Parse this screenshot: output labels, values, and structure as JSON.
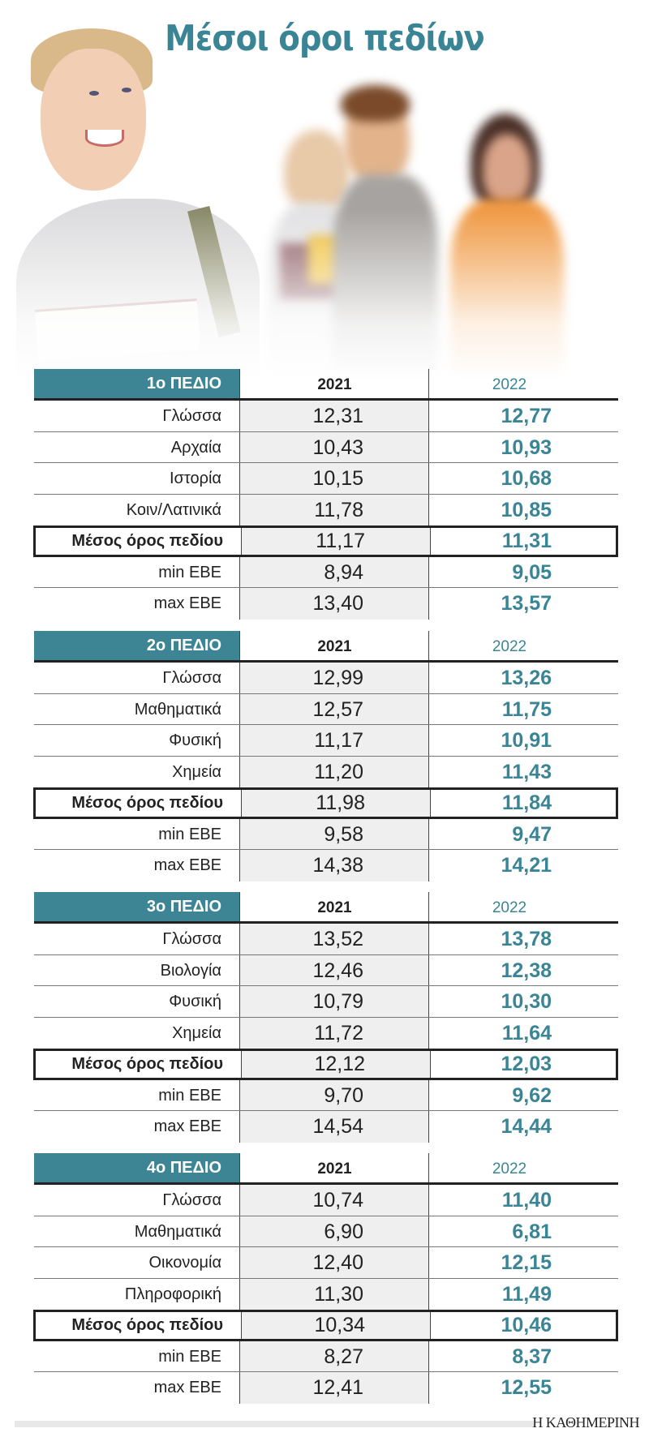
{
  "title": "Μέσοι όροι πεδίων",
  "columns": {
    "year1": "2021",
    "year2": "2022"
  },
  "blocks": [
    {
      "field": "1ο ΠΕΔΙΟ",
      "rows": [
        {
          "label": "Γλώσσα",
          "v2021": "12,31",
          "v2022": "12,77"
        },
        {
          "label": "Αρχαία",
          "v2021": "10,43",
          "v2022": "10,93"
        },
        {
          "label": "Ιστορία",
          "v2021": "10,15",
          "v2022": "10,68"
        },
        {
          "label": "Κοιν/Λατινικά",
          "v2021": "11,78",
          "v2022": "10,85"
        },
        {
          "label": "Μέσος όρος πεδίου",
          "v2021": "11,17",
          "v2022": "11,31"
        },
        {
          "label": "min ΕΒΕ",
          "v2021": "8,94",
          "v2022": "9,05"
        },
        {
          "label": "max ΕΒΕ",
          "v2021": "13,40",
          "v2022": "13,57"
        }
      ]
    },
    {
      "field": "2ο ΠΕΔΙΟ",
      "rows": [
        {
          "label": "Γλώσσα",
          "v2021": "12,99",
          "v2022": "13,26"
        },
        {
          "label": "Μαθηματικά",
          "v2021": "12,57",
          "v2022": "11,75"
        },
        {
          "label": "Φυσική",
          "v2021": "11,17",
          "v2022": "10,91"
        },
        {
          "label": "Χημεία",
          "v2021": "11,20",
          "v2022": "11,43"
        },
        {
          "label": "Μέσος όρος πεδίου",
          "v2021": "11,98",
          "v2022": "11,84"
        },
        {
          "label": "min ΕΒΕ",
          "v2021": "9,58",
          "v2022": "9,47"
        },
        {
          "label": "max ΕΒΕ",
          "v2021": "14,38",
          "v2022": "14,21"
        }
      ]
    },
    {
      "field": "3ο ΠΕΔΙΟ",
      "rows": [
        {
          "label": "Γλώσσα",
          "v2021": "13,52",
          "v2022": "13,78"
        },
        {
          "label": "Βιολογία",
          "v2021": "12,46",
          "v2022": "12,38"
        },
        {
          "label": "Φυσική",
          "v2021": "10,79",
          "v2022": "10,30"
        },
        {
          "label": "Χημεία",
          "v2021": "11,72",
          "v2022": "11,64"
        },
        {
          "label": "Μέσος όρος πεδίου",
          "v2021": "12,12",
          "v2022": "12,03"
        },
        {
          "label": "min ΕΒΕ",
          "v2021": "9,70",
          "v2022": "9,62"
        },
        {
          "label": "max ΕΒΕ",
          "v2021": "14,54",
          "v2022": "14,44"
        }
      ]
    },
    {
      "field": "4ο ΠΕΔΙΟ",
      "rows": [
        {
          "label": "Γλώσσα",
          "v2021": "10,74",
          "v2022": "11,40"
        },
        {
          "label": "Μαθηματικά",
          "v2021": "6,90",
          "v2022": "6,81"
        },
        {
          "label": "Οικονομία",
          "v2021": "12,40",
          "v2022": "12,15"
        },
        {
          "label": "Πληροφορική",
          "v2021": "11,30",
          "v2022": "11,49"
        },
        {
          "label": "Μέσος όρος πεδίου",
          "v2021": "10,34",
          "v2022": "10,46"
        },
        {
          "label": "min ΕΒΕ",
          "v2021": "8,27",
          "v2022": "8,37"
        },
        {
          "label": "max ΕΒΕ",
          "v2021": "12,41",
          "v2022": "12,55"
        }
      ]
    }
  ],
  "footer": {
    "brand": "Η ΚΑΘΗΜΕΡΙΝΗ"
  },
  "colors": {
    "accent": "#3d8494",
    "value2022": "#3a8595",
    "shade2021": "#efeff0"
  }
}
